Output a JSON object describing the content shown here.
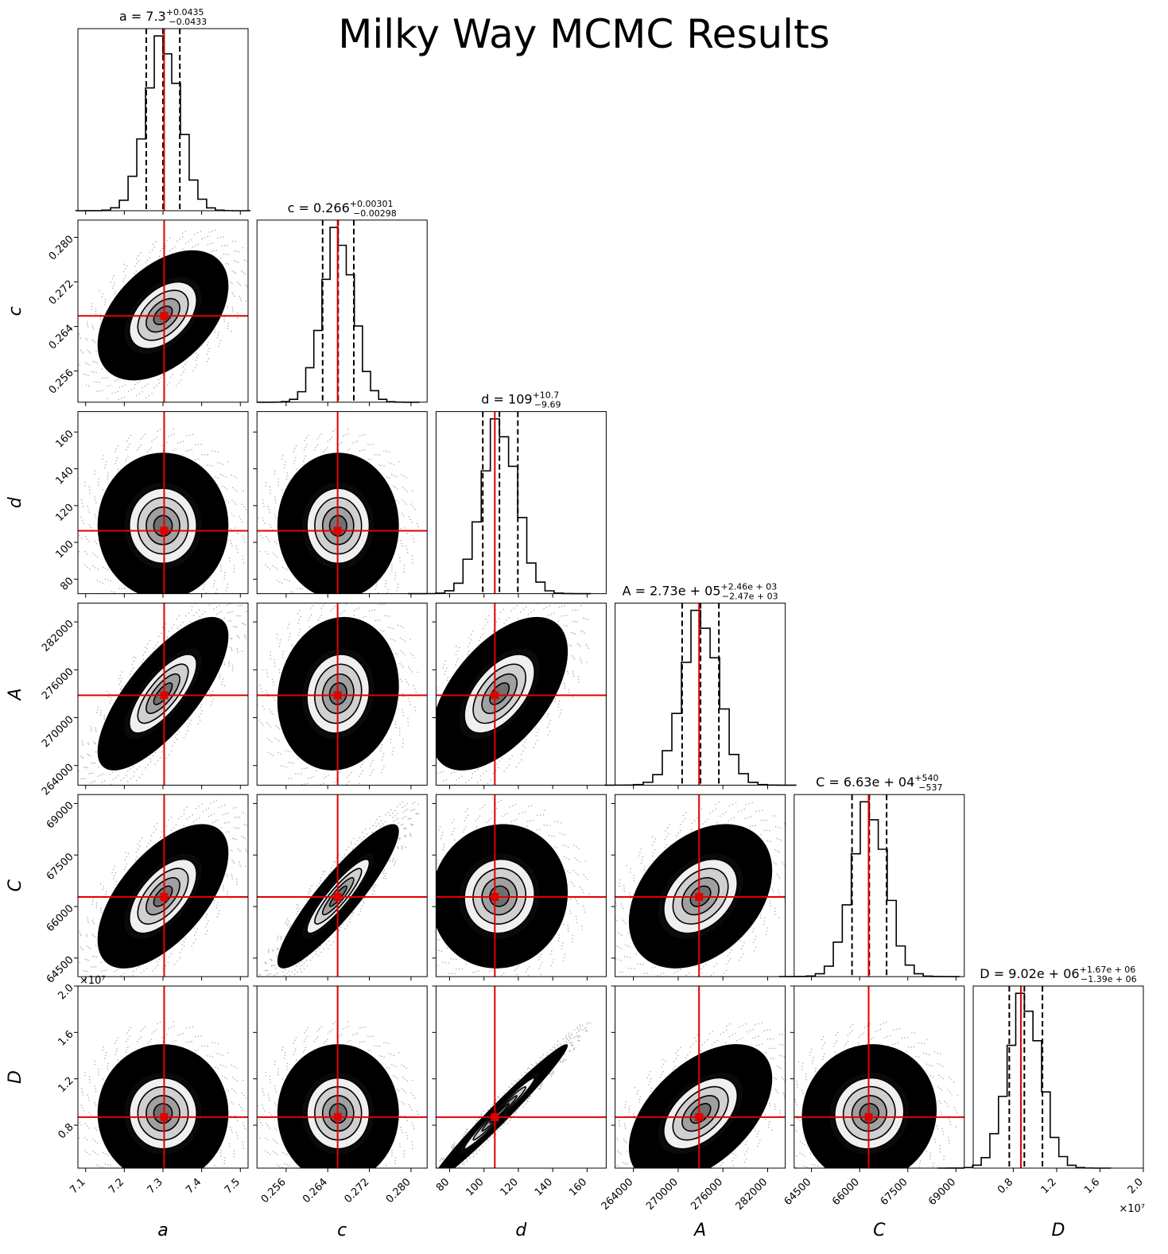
{
  "title": "Milky Way MCMC Results",
  "colors": {
    "truth": "#e00000",
    "marks": "#000000",
    "background": "#ffffff"
  },
  "chart_data": {
    "type": "scatter",
    "title": "Milky Way MCMC Results",
    "grid": false,
    "parameters": [
      {
        "key": "a",
        "label": "a",
        "median": 7.3,
        "plus": "0.0435",
        "minus": "0.0433",
        "summary_main": "a = 7.3",
        "summary_plus": "+0.0435",
        "summary_minus": "−0.0433",
        "range": [
          7.08,
          7.52
        ],
        "ticks": [
          7.1,
          7.2,
          7.3,
          7.4,
          7.5
        ],
        "tick_labels": [
          "7.1",
          "7.2",
          "7.3",
          "7.4",
          "7.5"
        ],
        "truth": 7.303,
        "scale_label": ""
      },
      {
        "key": "c",
        "label": "c",
        "median": 0.266,
        "plus": "0.00301",
        "minus": "0.00298",
        "summary_main": "c = 0.266",
        "summary_plus": "+0.00301",
        "summary_minus": "−0.00298",
        "range": [
          0.2504,
          0.2831
        ],
        "ticks": [
          0.256,
          0.264,
          0.272,
          0.28
        ],
        "tick_labels": [
          "0.256",
          "0.264",
          "0.272",
          "0.280"
        ],
        "truth": 0.2659,
        "scale_label": ""
      },
      {
        "key": "d",
        "label": "d",
        "median": 109,
        "plus": "10.7",
        "minus": "9.69",
        "summary_main": "d = 109",
        "summary_plus": "+10.7",
        "summary_minus": "−9.69",
        "range": [
          72.1,
          171.1
        ],
        "ticks": [
          80,
          100,
          120,
          140,
          160
        ],
        "tick_labels": [
          "80",
          "100",
          "120",
          "140",
          "160"
        ],
        "truth": 106.3,
        "scale_label": ""
      },
      {
        "key": "A",
        "label": "A",
        "median": 273000,
        "plus": "2.46e+03",
        "minus": "2.47e+03",
        "summary_main": "A = 2.73e + 05",
        "summary_plus": "+2.46e + 03",
        "summary_minus": "−2.47e + 03",
        "range": [
          261540,
          284360
        ],
        "ticks": [
          264000,
          270000,
          276000,
          282000
        ],
        "tick_labels": [
          "264000",
          "270000",
          "276000",
          "282000"
        ],
        "truth": 272800,
        "scale_label": ""
      },
      {
        "key": "C",
        "label": "C",
        "median": 66300,
        "plus": "540",
        "minus": "537",
        "summary_main": "C = 6.63e + 04",
        "summary_plus": "+540",
        "summary_minus": "−537",
        "range": [
          63960,
          69260
        ],
        "ticks": [
          64500,
          66000,
          67500,
          69000
        ],
        "tick_labels": [
          "64500",
          "66000",
          "67500",
          "69000"
        ],
        "truth": 66280,
        "scale_label": ""
      },
      {
        "key": "D",
        "label": "D",
        "median": 9020000,
        "plus": "1.67e+06",
        "minus": "1.39e+06",
        "summary_main": "D = 9.02e + 06",
        "summary_plus": "+1.67e + 06",
        "summary_minus": "−1.39e + 06",
        "range": [
          4300000,
          20000000
        ],
        "ticks": [
          8000000,
          12000000,
          16000000,
          20000000
        ],
        "tick_labels": [
          "0.8",
          "1.2",
          "1.6",
          "2.0"
        ],
        "truth": 8700000,
        "scale_label": "×10⁷"
      }
    ],
    "credible_intervals": [
      {
        "param": "a",
        "lower": 7.2567,
        "median": 7.3,
        "upper": 7.3435
      },
      {
        "param": "c",
        "lower": 0.26302,
        "median": 0.266,
        "upper": 0.26901
      },
      {
        "param": "d",
        "lower": 99.31,
        "median": 109,
        "upper": 119.7
      },
      {
        "param": "A",
        "lower": 270530,
        "median": 273000,
        "upper": 275460
      },
      {
        "param": "C",
        "lower": 65763,
        "median": 66300,
        "upper": 66840
      },
      {
        "param": "D",
        "lower": 7630000,
        "median": 9020000,
        "upper": 10690000
      }
    ],
    "truth_values": {
      "a": 7.303,
      "c": 0.2659,
      "d": 106.3,
      "A": 272800,
      "C": 66280,
      "D": 8700000
    }
  }
}
